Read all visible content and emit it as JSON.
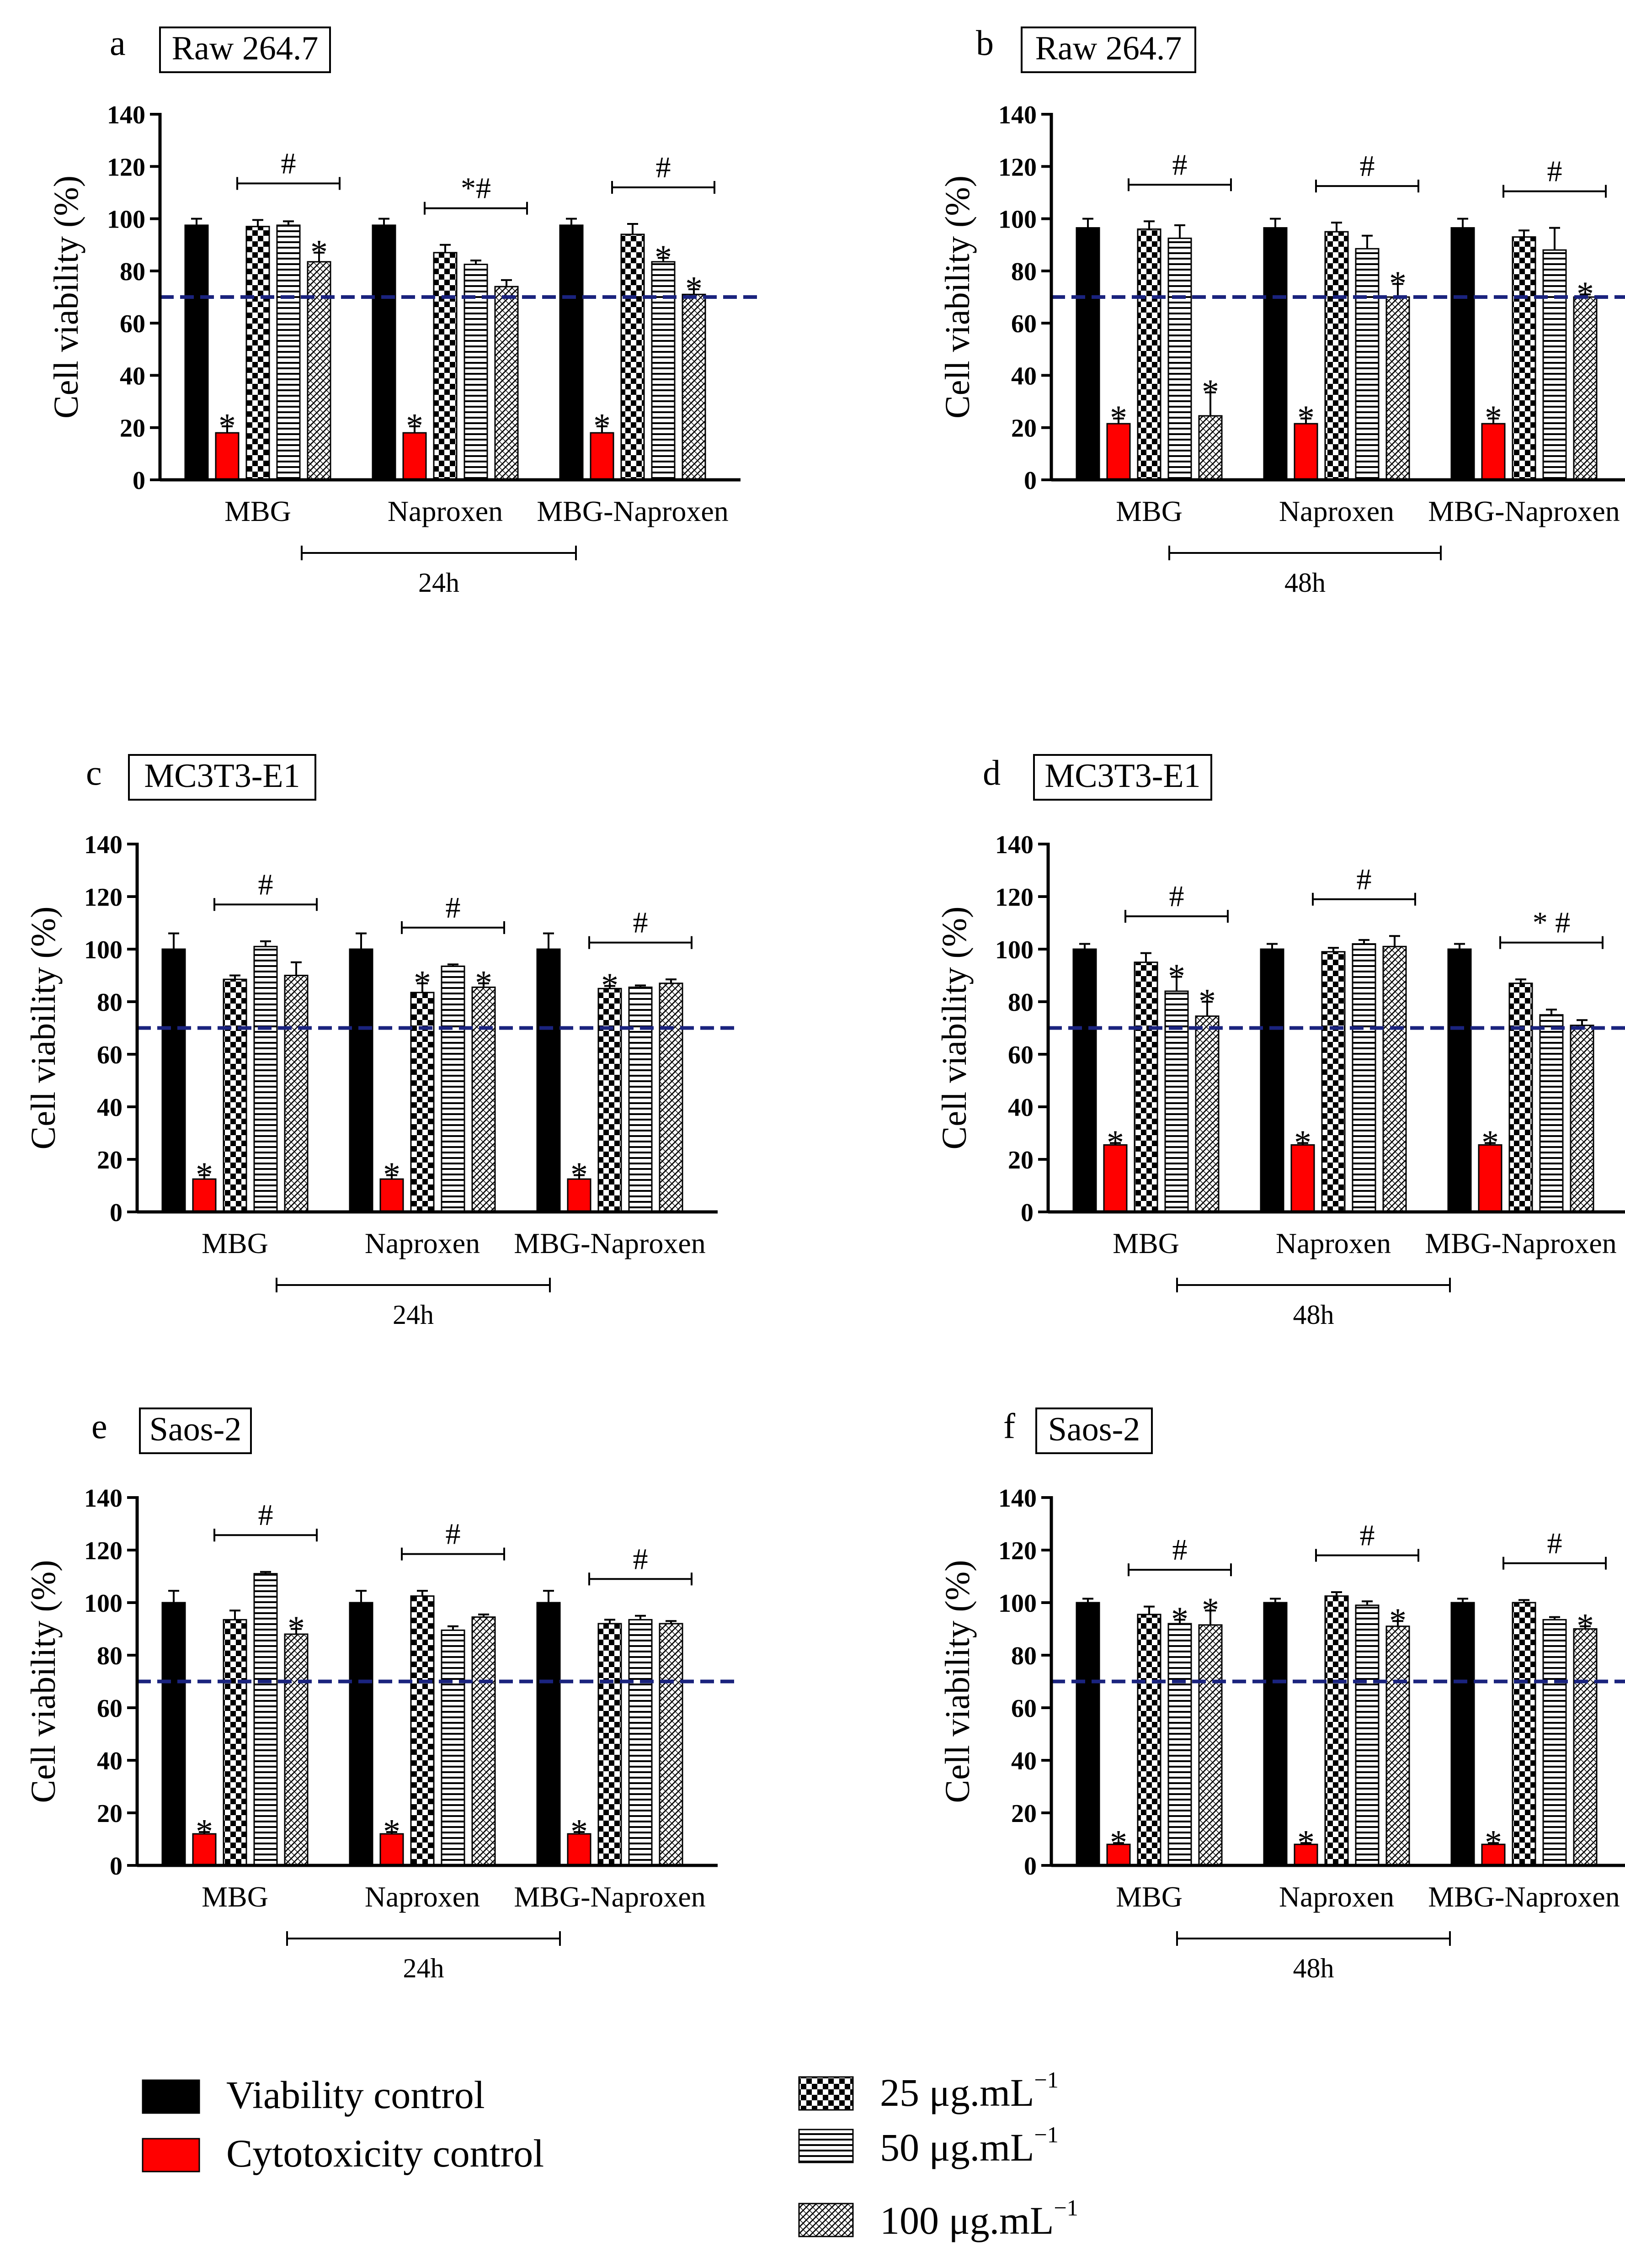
{
  "figure": {
    "legend": {
      "controls": [
        {
          "label": "Viability control",
          "color": "#000000",
          "pattern": "solid"
        },
        {
          "label": "Cytotoxicity control",
          "color": "#ff0000",
          "pattern": "solid"
        }
      ],
      "concentrations": [
        {
          "label": "25 μg.mL",
          "sup": "−1",
          "pattern": "checker"
        },
        {
          "label": "50 μg.mL",
          "sup": "−1",
          "pattern": "hlines"
        },
        {
          "label": "100 μg.mL",
          "sup": "−1",
          "pattern": "crosshatch"
        }
      ]
    }
  },
  "chart_data": [
    {
      "id": "a",
      "panel_letter": "a",
      "cell_line": "Raw 264.7",
      "time_label": "24h",
      "type": "bar",
      "ylabel": "Cell viability (%)",
      "ylim": [
        0,
        140
      ],
      "yticks": [
        0,
        20,
        40,
        60,
        80,
        100,
        120,
        140
      ],
      "threshold": 70,
      "categories": [
        "MBG",
        "Naproxen",
        "MBG-Naproxen"
      ],
      "series": [
        {
          "name": "Viability control",
          "values": [
            97.5,
            97.5,
            97.5
          ],
          "errors": [
            2.5,
            2.5,
            2.5
          ]
        },
        {
          "name": "Cytotoxicity control",
          "values": [
            18,
            18,
            18
          ],
          "errors": [
            2.5,
            2.5,
            2.5
          ]
        },
        {
          "name": "25 μg.mL-1",
          "values": [
            97,
            87,
            94
          ],
          "errors": [
            2.5,
            3,
            4
          ]
        },
        {
          "name": "50 μg.mL-1",
          "values": [
            97.5,
            82.5,
            83.5
          ],
          "errors": [
            1.5,
            1.5,
            1.5
          ]
        },
        {
          "name": "100 μg.mL-1",
          "values": [
            83.5,
            74,
            71
          ],
          "errors": [
            3.5,
            2.5,
            2
          ]
        }
      ],
      "stars": [
        [
          null,
          null,
          null
        ],
        [
          "*",
          "*",
          "*"
        ],
        [
          null,
          null,
          null
        ],
        [
          null,
          null,
          "*"
        ],
        [
          "*",
          null,
          "*"
        ]
      ],
      "group_labels": [
        "#",
        "*#",
        "#"
      ]
    },
    {
      "id": "b",
      "panel_letter": "b",
      "cell_line": "Raw 264.7",
      "time_label": "48h",
      "type": "bar",
      "ylabel": "Cell viability (%)",
      "ylim": [
        0,
        140
      ],
      "yticks": [
        0,
        20,
        40,
        60,
        80,
        100,
        120,
        140
      ],
      "threshold": 70,
      "categories": [
        "MBG",
        "Naproxen",
        "MBG-Naproxen"
      ],
      "series": [
        {
          "name": "Viability control",
          "values": [
            96.5,
            96.5,
            96.5
          ],
          "errors": [
            3.5,
            3.5,
            3.5
          ]
        },
        {
          "name": "Cytotoxicity control",
          "values": [
            21.5,
            21.5,
            21.5
          ],
          "errors": [
            2,
            2,
            2
          ]
        },
        {
          "name": "25 μg.mL-1",
          "values": [
            96,
            95,
            93
          ],
          "errors": [
            3,
            3.5,
            2.5
          ]
        },
        {
          "name": "50 μg.mL-1",
          "values": [
            92.5,
            88.5,
            88
          ],
          "errors": [
            5,
            5,
            8.5
          ]
        },
        {
          "name": "100 μg.mL-1",
          "values": [
            24.5,
            70,
            70
          ],
          "errors": [
            9,
            5,
            1
          ]
        }
      ],
      "stars": [
        [
          null,
          null,
          null
        ],
        [
          "*",
          "*",
          "*"
        ],
        [
          null,
          null,
          null
        ],
        [
          null,
          null,
          null
        ],
        [
          "*",
          "*",
          "*"
        ]
      ],
      "group_labels": [
        "#",
        "#",
        "#"
      ]
    },
    {
      "id": "c",
      "panel_letter": "c",
      "cell_line": "MC3T3-E1",
      "time_label": "24h",
      "type": "bar",
      "ylabel": "Cell viability (%)",
      "ylim": [
        0,
        140
      ],
      "yticks": [
        0,
        20,
        40,
        60,
        80,
        100,
        120,
        140
      ],
      "threshold": 70,
      "categories": [
        "MBG",
        "Naproxen",
        "MBG-Naproxen"
      ],
      "series": [
        {
          "name": "Viability control",
          "values": [
            100,
            100,
            100
          ],
          "errors": [
            6,
            6,
            6
          ]
        },
        {
          "name": "Cytotoxicity control",
          "values": [
            12.5,
            12.5,
            12.5
          ],
          "errors": [
            1.5,
            1.5,
            1.5
          ]
        },
        {
          "name": "25 μg.mL-1",
          "values": [
            88.5,
            83.5,
            85
          ],
          "errors": [
            1.5,
            3.5,
            1
          ]
        },
        {
          "name": "50 μg.mL-1",
          "values": [
            101,
            93.5,
            85.5
          ],
          "errors": [
            2,
            0.7,
            0.7
          ]
        },
        {
          "name": "100 μg.mL-1",
          "values": [
            90,
            85.5,
            87
          ],
          "errors": [
            5,
            1.5,
            1.5
          ]
        }
      ],
      "stars": [
        [
          null,
          null,
          null
        ],
        [
          "*",
          "*",
          "*"
        ],
        [
          null,
          "*",
          "*"
        ],
        [
          null,
          null,
          null
        ],
        [
          null,
          "*",
          null
        ]
      ],
      "group_labels": [
        "#",
        "#",
        "#"
      ]
    },
    {
      "id": "d",
      "panel_letter": "d",
      "cell_line": "MC3T3-E1",
      "time_label": "48h",
      "type": "bar",
      "ylabel": "Cell viability (%)",
      "ylim": [
        0,
        140
      ],
      "yticks": [
        0,
        20,
        40,
        60,
        80,
        100,
        120,
        140
      ],
      "threshold": 70,
      "categories": [
        "MBG",
        "Naproxen",
        "MBG-Naproxen"
      ],
      "series": [
        {
          "name": "Viability control",
          "values": [
            100,
            100,
            100
          ],
          "errors": [
            2,
            2,
            2
          ]
        },
        {
          "name": "Cytotoxicity control",
          "values": [
            25.5,
            25.5,
            25.5
          ],
          "errors": [
            0.7,
            0.7,
            0.7
          ]
        },
        {
          "name": "25 μg.mL-1",
          "values": [
            95,
            99,
            87
          ],
          "errors": [
            3.5,
            1.5,
            1.5
          ]
        },
        {
          "name": "50 μg.mL-1",
          "values": [
            84,
            102,
            75
          ],
          "errors": [
            5.5,
            1.5,
            2
          ]
        },
        {
          "name": "100 μg.mL-1",
          "values": [
            74.5,
            101,
            71
          ],
          "errors": [
            5.5,
            4,
            2
          ]
        }
      ],
      "stars": [
        [
          null,
          null,
          null
        ],
        [
          "*",
          "*",
          "*"
        ],
        [
          null,
          null,
          null
        ],
        [
          "*",
          null,
          null
        ],
        [
          "*",
          null,
          null
        ]
      ],
      "group_labels": [
        "#",
        "#",
        "* #"
      ]
    },
    {
      "id": "e",
      "panel_letter": "e",
      "cell_line": "Saos-2",
      "time_label": "24h",
      "type": "bar",
      "ylabel": "Cell viability (%)",
      "ylim": [
        0,
        140
      ],
      "yticks": [
        0,
        20,
        40,
        60,
        80,
        100,
        120,
        140
      ],
      "threshold": 70,
      "categories": [
        "MBG",
        "Naproxen",
        "MBG-Naproxen"
      ],
      "series": [
        {
          "name": "Viability control",
          "values": [
            100,
            100,
            100
          ],
          "errors": [
            4.5,
            4.5,
            4.5
          ]
        },
        {
          "name": "Cytotoxicity control",
          "values": [
            12,
            12,
            12
          ],
          "errors": [
            0.7,
            0.7,
            0.7
          ]
        },
        {
          "name": "25 μg.mL-1",
          "values": [
            93.5,
            102.5,
            92
          ],
          "errors": [
            3.5,
            2,
            1.5
          ]
        },
        {
          "name": "50 μg.mL-1",
          "values": [
            111,
            89.5,
            93.5
          ],
          "errors": [
            0.7,
            1.5,
            1.5
          ]
        },
        {
          "name": "100 μg.mL-1",
          "values": [
            88,
            94.5,
            92
          ],
          "errors": [
            2,
            1,
            1
          ]
        }
      ],
      "stars": [
        [
          null,
          null,
          null
        ],
        [
          "*",
          "*",
          "*"
        ],
        [
          null,
          null,
          null
        ],
        [
          null,
          null,
          null
        ],
        [
          "*",
          null,
          null
        ]
      ],
      "group_labels": [
        "#",
        "#",
        "#"
      ]
    },
    {
      "id": "f",
      "panel_letter": "f",
      "cell_line": "Saos-2",
      "time_label": "48h",
      "type": "bar",
      "ylabel": "Cell viability (%)",
      "ylim": [
        0,
        140
      ],
      "yticks": [
        0,
        20,
        40,
        60,
        80,
        100,
        120,
        140
      ],
      "threshold": 70,
      "categories": [
        "MBG",
        "Naproxen",
        "MBG-Naproxen"
      ],
      "series": [
        {
          "name": "Viability control",
          "values": [
            100,
            100,
            100
          ],
          "errors": [
            1.5,
            1.5,
            1.5
          ]
        },
        {
          "name": "Cytotoxicity control",
          "values": [
            8,
            8,
            8
          ],
          "errors": [
            0.5,
            0.5,
            0.5
          ]
        },
        {
          "name": "25 μg.mL-1",
          "values": [
            95.5,
            102.5,
            100
          ],
          "errors": [
            3,
            1.5,
            1
          ]
        },
        {
          "name": "50 μg.mL-1",
          "values": [
            92,
            99,
            93.5
          ],
          "errors": [
            1.5,
            1.5,
            1
          ]
        },
        {
          "name": "100 μg.mL-1",
          "values": [
            91.5,
            91,
            90
          ],
          "errors": [
            5.5,
            2,
            1
          ]
        }
      ],
      "stars": [
        [
          null,
          null,
          null
        ],
        [
          "*",
          "*",
          "*"
        ],
        [
          null,
          null,
          null
        ],
        [
          "*",
          null,
          null
        ],
        [
          "*",
          "*",
          "*"
        ]
      ],
      "group_labels": [
        "#",
        "#",
        "#"
      ]
    }
  ]
}
